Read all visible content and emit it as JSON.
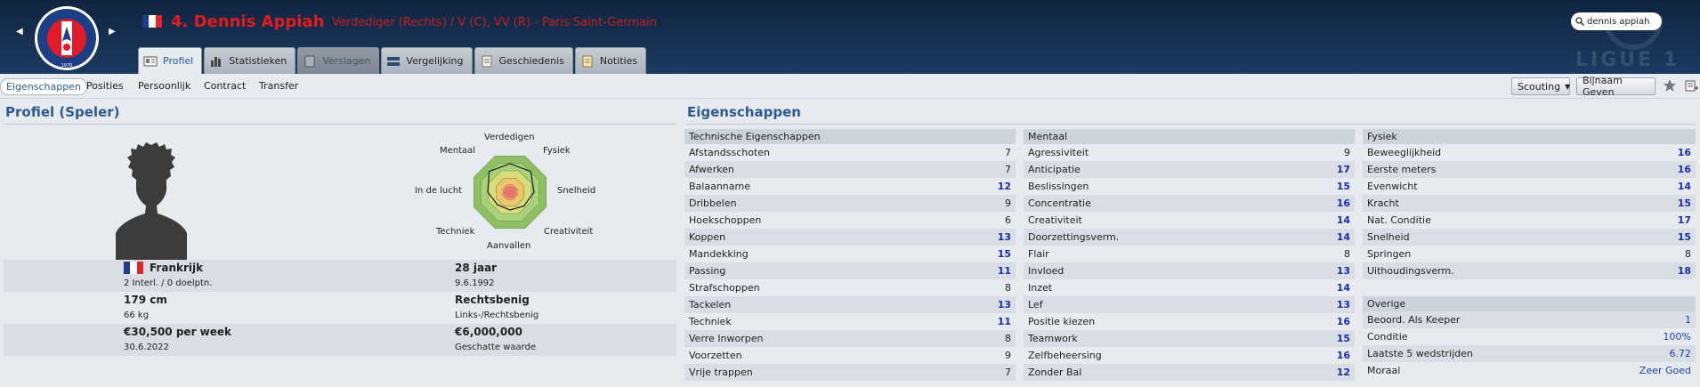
{
  "header": {
    "player_name": "4. Dennis Appiah",
    "subtitle": "Verdediger (Rechts) / V (C), VV (R) - Paris Saint-Germain",
    "search_value": "dennis appiah",
    "league": "LIGUE 1",
    "flag_colors": [
      "#1f3b8f",
      "#ffffff",
      "#e0262b"
    ]
  },
  "tabs": [
    {
      "label": "Profiel",
      "icon": "profile-card-icon",
      "state": "active"
    },
    {
      "label": "Statistieken",
      "icon": "stats-icon",
      "state": "normal"
    },
    {
      "label": "Verslagen",
      "icon": "report-icon",
      "state": "disabled"
    },
    {
      "label": "Vergelijking",
      "icon": "compare-icon",
      "state": "normal"
    },
    {
      "label": "Geschiedenis",
      "icon": "history-icon",
      "state": "normal"
    },
    {
      "label": "Notities",
      "icon": "notes-icon",
      "state": "normal"
    }
  ],
  "subnav": {
    "items": [
      "Eigenschappen",
      "Posities",
      "Persoonlijk",
      "Contract",
      "Transfer"
    ],
    "scouting": "Scouting",
    "bijnaam": "Bijnaam Geven"
  },
  "profile": {
    "title": "Profiel (Speler)",
    "radar_labels": {
      "top": "Verdedigen",
      "top_right": "Fysiek",
      "right": "Snelheid",
      "bottom_right": "Creativiteit",
      "bottom": "Aanvallen",
      "bottom_left": "Techniek",
      "left": "In de lucht",
      "top_left": "Mentaal"
    },
    "nationality": "Frankrijk",
    "caps": "2 Interl. / 0 doelptn.",
    "age": "28 jaar",
    "birthdate": "9.6.1992",
    "height": "179 cm",
    "weight": "66 kg",
    "foot": "Rechtsbenig",
    "foot_detail": "Links-/Rechtsbenig",
    "wage": "€30,500 per week",
    "contract_end": "30.6.2022",
    "value": "€6,000,000",
    "value_label": "Geschatte waarde"
  },
  "attributes": {
    "title": "Eigenschappen",
    "technical": {
      "header": "Technische Eigenschappen",
      "items": [
        {
          "name": "Afstandsschoten",
          "value": "7"
        },
        {
          "name": "Afwerken",
          "value": "7"
        },
        {
          "name": "Balaanname",
          "value": "12"
        },
        {
          "name": "Dribbelen",
          "value": "9"
        },
        {
          "name": "Hoekschoppen",
          "value": "6"
        },
        {
          "name": "Koppen",
          "value": "13"
        },
        {
          "name": "Mandekking",
          "value": "15"
        },
        {
          "name": "Passing",
          "value": "11"
        },
        {
          "name": "Strafschoppen",
          "value": "8"
        },
        {
          "name": "Tackelen",
          "value": "13"
        },
        {
          "name": "Techniek",
          "value": "11"
        },
        {
          "name": "Verre Inworpen",
          "value": "8"
        },
        {
          "name": "Voorzetten",
          "value": "9"
        },
        {
          "name": "Vrije trappen",
          "value": "7"
        }
      ]
    },
    "mental": {
      "header": "Mentaal",
      "items": [
        {
          "name": "Agressiviteit",
          "value": "9"
        },
        {
          "name": "Anticipatie",
          "value": "17"
        },
        {
          "name": "Beslissingen",
          "value": "15"
        },
        {
          "name": "Concentratie",
          "value": "16"
        },
        {
          "name": "Creativiteit",
          "value": "14"
        },
        {
          "name": "Doorzettingsverm.",
          "value": "14"
        },
        {
          "name": "Flair",
          "value": "8"
        },
        {
          "name": "Invloed",
          "value": "13"
        },
        {
          "name": "Inzet",
          "value": "14"
        },
        {
          "name": "Lef",
          "value": "13"
        },
        {
          "name": "Positie kiezen",
          "value": "16"
        },
        {
          "name": "Teamwork",
          "value": "15"
        },
        {
          "name": "Zelfbeheersing",
          "value": "16"
        },
        {
          "name": "Zonder Bal",
          "value": "12"
        }
      ]
    },
    "physical": {
      "header": "Fysiek",
      "items": [
        {
          "name": "Beweeglijkheid",
          "value": "16"
        },
        {
          "name": "Eerste meters",
          "value": "16"
        },
        {
          "name": "Evenwicht",
          "value": "14"
        },
        {
          "name": "Kracht",
          "value": "15"
        },
        {
          "name": "Nat. Conditie",
          "value": "17"
        },
        {
          "name": "Snelheid",
          "value": "15"
        },
        {
          "name": "Springen",
          "value": "8"
        },
        {
          "name": "Uithoudingsverm.",
          "value": "18"
        }
      ]
    },
    "other": {
      "header": "Overige",
      "items": [
        {
          "name": "Beoord. Als Keeper",
          "value": "1"
        },
        {
          "name": "Conditie",
          "value": "100%"
        },
        {
          "name": "Laatste 5 wedstrijden",
          "value": "6.72"
        },
        {
          "name": "Moraal",
          "value": "Zeer Goed"
        }
      ]
    }
  }
}
